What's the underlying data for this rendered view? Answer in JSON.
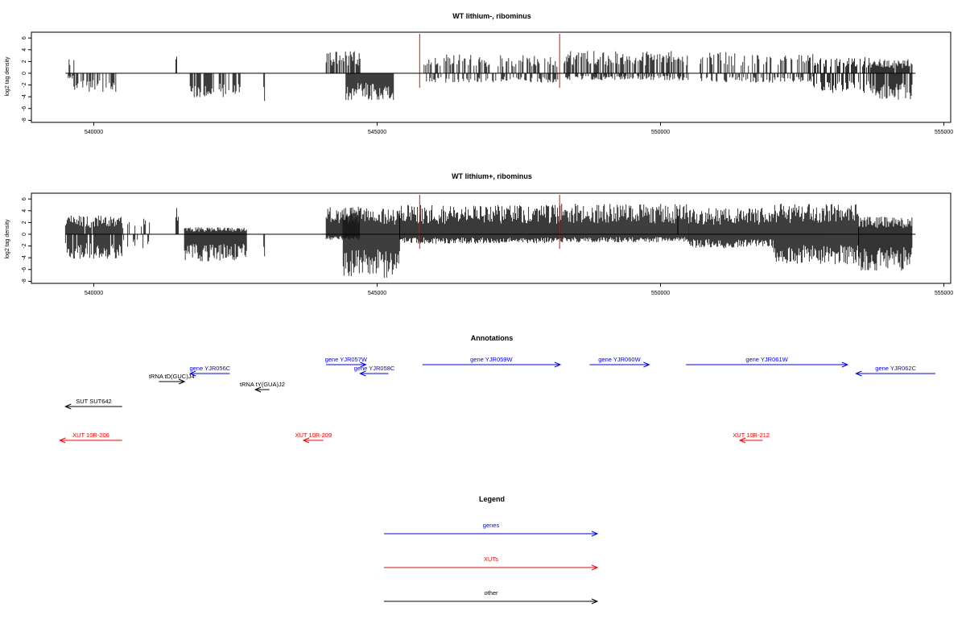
{
  "chart_data": [
    {
      "type": "bar",
      "title": "WT lithium-, ribominus",
      "ylabel": "log2 tag density",
      "xlim": [
        539500,
        554500
      ],
      "ylim": [
        -8,
        6
      ],
      "x_ticks": [
        540000,
        545000,
        550000,
        555000
      ],
      "x_tick_labels": [
        "540000",
        "545000",
        "550000",
        "555000"
      ],
      "y_ticks": [
        -8,
        -6,
        -4,
        -2,
        0,
        2,
        4,
        6
      ],
      "y_tick_labels": [
        "-8",
        "-6",
        "-4",
        "-2",
        "0",
        "2",
        "4",
        "6"
      ],
      "markers": [
        {
          "x": 545750,
          "color": "#ff0000"
        },
        {
          "x": 548220,
          "color": "#ff0000"
        }
      ],
      "segments": [
        {
          "x0": 539550,
          "x1": 539650,
          "plus": 2.7,
          "minus": -1.0,
          "dens": 0.6
        },
        {
          "x0": 539650,
          "x1": 540400,
          "plus": 0,
          "minus": -3.2,
          "dens": 0.5
        },
        {
          "x0": 541450,
          "x1": 541470,
          "plus": 3.8,
          "minus": 0,
          "dens": 1.0
        },
        {
          "x0": 541700,
          "x1": 542600,
          "plus": 0,
          "minus": -4.2,
          "dens": 0.7
        },
        {
          "x0": 543000,
          "x1": 543020,
          "plus": 0,
          "minus": -6.0,
          "dens": 1.0
        },
        {
          "x0": 544100,
          "x1": 544700,
          "plus": 3.8,
          "minus": 0,
          "dens": 0.7
        },
        {
          "x0": 544450,
          "x1": 545300,
          "plus": 0,
          "minus": -4.6,
          "dens": 1.0
        },
        {
          "x0": 545800,
          "x1": 548200,
          "plus": 3.2,
          "minus": -1.6,
          "dens": 0.45
        },
        {
          "x0": 548300,
          "x1": 550500,
          "plus": 3.8,
          "minus": -1.2,
          "dens": 0.55
        },
        {
          "x0": 550700,
          "x1": 552700,
          "plus": 3.6,
          "minus": -1.6,
          "dens": 0.35
        },
        {
          "x0": 552600,
          "x1": 553700,
          "plus": 2.8,
          "minus": -3.4,
          "dens": 0.6
        },
        {
          "x0": 553700,
          "x1": 554450,
          "plus": 2.4,
          "minus": -4.6,
          "dens": 0.9
        }
      ]
    },
    {
      "type": "bar",
      "title": "WT lithium+, ribominus",
      "ylabel": "log2 tag density",
      "xlim": [
        539500,
        554500
      ],
      "ylim": [
        -8,
        6
      ],
      "x_ticks": [
        540000,
        545000,
        550000,
        555000
      ],
      "x_tick_labels": [
        "540000",
        "545000",
        "550000",
        "555000"
      ],
      "y_ticks": [
        -8,
        -6,
        -4,
        -2,
        0,
        2,
        4,
        6
      ],
      "y_tick_labels": [
        "-8",
        "-6",
        "-4",
        "-2",
        "0",
        "2",
        "4",
        "6"
      ],
      "markers": [
        {
          "x": 545750,
          "color": "#ff0000"
        },
        {
          "x": 548220,
          "color": "#ff0000"
        }
      ],
      "segments": [
        {
          "x0": 539500,
          "x1": 540500,
          "plus": 3.2,
          "minus": -4.2,
          "dens": 0.9
        },
        {
          "x0": 540500,
          "x1": 541000,
          "plus": 3.0,
          "minus": -2.5,
          "dens": 0.3
        },
        {
          "x0": 541450,
          "x1": 541500,
          "plus": 5.0,
          "minus": 0,
          "dens": 1.0
        },
        {
          "x0": 541600,
          "x1": 542700,
          "plus": 1.2,
          "minus": -4.6,
          "dens": 1.0
        },
        {
          "x0": 543000,
          "x1": 543020,
          "plus": 0,
          "minus": -6.0,
          "dens": 1.0
        },
        {
          "x0": 544100,
          "x1": 544700,
          "plus": 4.8,
          "minus": -1.0,
          "dens": 1.0
        },
        {
          "x0": 544400,
          "x1": 545400,
          "plus": 4.6,
          "minus": -7.4,
          "dens": 1.0
        },
        {
          "x0": 545400,
          "x1": 548200,
          "plus": 5.0,
          "minus": -1.6,
          "dens": 1.0
        },
        {
          "x0": 548200,
          "x1": 550500,
          "plus": 5.2,
          "minus": -1.4,
          "dens": 1.0
        },
        {
          "x0": 550300,
          "x1": 550320,
          "plus": 6.6,
          "minus": 0,
          "dens": 1.0
        },
        {
          "x0": 550500,
          "x1": 552000,
          "plus": 4.6,
          "minus": -2.4,
          "dens": 1.0
        },
        {
          "x0": 552000,
          "x1": 553500,
          "plus": 5.2,
          "minus": -5.2,
          "dens": 1.0
        },
        {
          "x0": 553500,
          "x1": 554450,
          "plus": 3.0,
          "minus": -6.2,
          "dens": 1.0
        }
      ]
    }
  ],
  "annotations": {
    "title": "Annotations",
    "xlim": [
      539500,
      554500
    ],
    "features": [
      {
        "label": "gene YJR056C",
        "start": 541700,
        "end": 542400,
        "dir": "left",
        "color": "#0000ff",
        "row": 1
      },
      {
        "label": "tRNA tD(GUC)J4",
        "start": 541150,
        "end": 541600,
        "dir": "right",
        "color": "#000000",
        "row": 2
      },
      {
        "label": "tRNA tY(GUA)J2",
        "start": 542850,
        "end": 543100,
        "dir": "left",
        "color": "#000000",
        "row": 3
      },
      {
        "label": "SUT SUT642",
        "start": 539500,
        "end": 540500,
        "dir": "left",
        "color": "#000000",
        "row": 4
      },
      {
        "label": "XUT 10R-206",
        "start": 539400,
        "end": 540500,
        "dir": "left",
        "color": "#ff0000",
        "row": 5
      },
      {
        "label": "gene YJR057W",
        "start": 544100,
        "end": 544800,
        "dir": "right",
        "color": "#0000ff",
        "row": 0
      },
      {
        "label": "gene YJR058C",
        "start": 544700,
        "end": 545200,
        "dir": "left",
        "color": "#0000ff",
        "row": 1
      },
      {
        "label": "XUT 10R-209",
        "start": 543700,
        "end": 544050,
        "dir": "left",
        "color": "#ff0000",
        "row": 5
      },
      {
        "label": "gene YJR059W",
        "start": 545800,
        "end": 548230,
        "dir": "right",
        "color": "#0000ff",
        "row": 0
      },
      {
        "label": "gene YJR060W",
        "start": 548750,
        "end": 549800,
        "dir": "right",
        "color": "#0000ff",
        "row": 0
      },
      {
        "label": "gene YJR061W",
        "start": 550450,
        "end": 553300,
        "dir": "right",
        "color": "#0000ff",
        "row": 0
      },
      {
        "label": "gene YJR062C",
        "start": 553450,
        "end": 554850,
        "dir": "left",
        "color": "#0000ff",
        "row": 1
      },
      {
        "label": "XUT 10R-212",
        "start": 551400,
        "end": 551800,
        "dir": "left",
        "color": "#ff0000",
        "row": 5
      }
    ]
  },
  "legend": {
    "title": "Legend",
    "entries": [
      {
        "label": "genes",
        "color": "#0000ff"
      },
      {
        "label": "XUTs",
        "color": "#ff0000"
      },
      {
        "label": "other",
        "color": "#000000"
      }
    ]
  }
}
